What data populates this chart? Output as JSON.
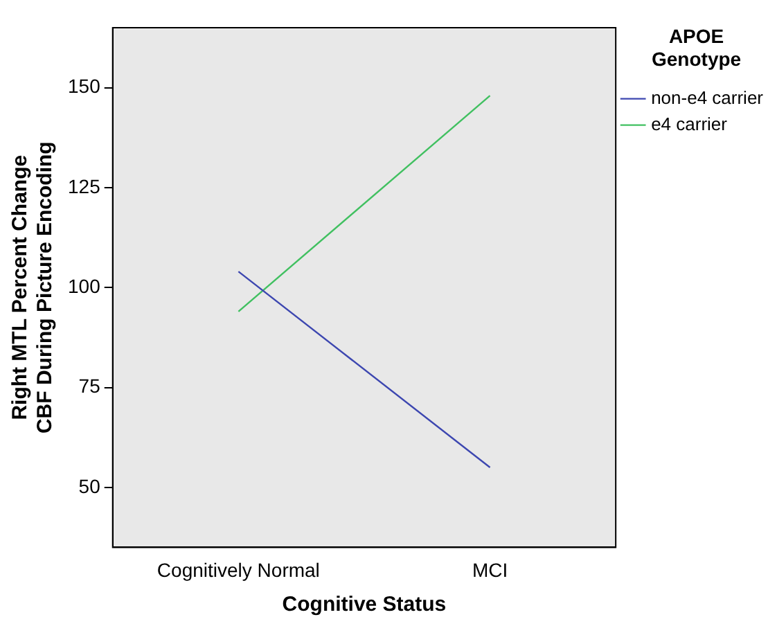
{
  "chart_data": {
    "type": "line",
    "xlabel": "Cognitive Status",
    "ylabel": "Right MTL Percent Change CBF During Picture Encoding",
    "legend_title": "APOE Genotype",
    "categories": [
      "Cognitively Normal",
      "MCI"
    ],
    "series": [
      {
        "name": "non-e4 carrier",
        "color": "#3c46b0",
        "values": [
          104,
          55
        ]
      },
      {
        "name": "e4 carrier",
        "color": "#40c060",
        "values": [
          94,
          148
        ]
      }
    ],
    "ylim": [
      35,
      165
    ],
    "yticks": [
      50,
      75,
      100,
      125,
      150
    ],
    "grid": false,
    "legend": "right",
    "marker": "none",
    "line_style": "solid"
  }
}
